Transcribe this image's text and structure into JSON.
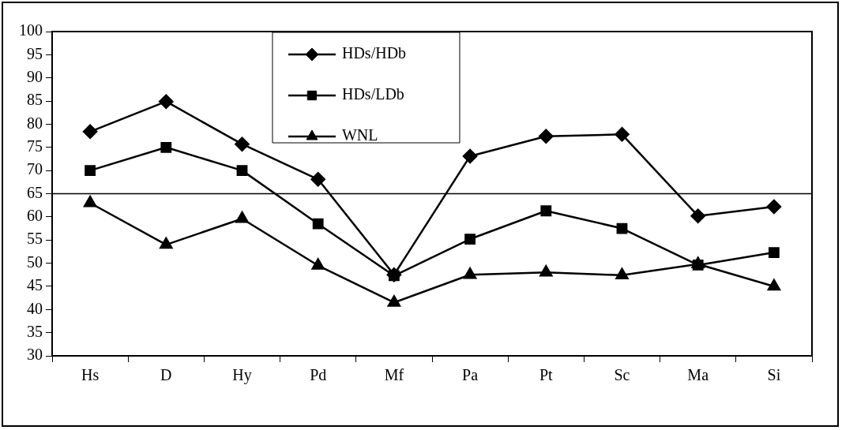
{
  "chart_data": {
    "type": "line",
    "categories": [
      "Hs",
      "D",
      "Hy",
      "Pd",
      "Mf",
      "Pa",
      "Pt",
      "Sc",
      "Ma",
      "Si"
    ],
    "series": [
      {
        "name": "HDs/HDb",
        "color": "#000000",
        "marker": "diamond",
        "values": [
          78.4,
          84.9,
          75.7,
          68.1,
          47.5,
          73.1,
          77.4,
          77.8,
          60.2,
          62.2
        ]
      },
      {
        "name": "HDs/LDb",
        "color": "#000000",
        "marker": "square",
        "values": [
          70,
          75,
          70,
          58.5,
          47.3,
          55.2,
          61.3,
          57.5,
          49.6,
          52.3
        ]
      },
      {
        "name": "WNL",
        "color": "#000000",
        "marker": "triangle",
        "values": [
          63,
          54,
          59.6,
          49.5,
          41.5,
          47.5,
          48,
          47.4,
          49.8,
          45
        ]
      }
    ],
    "ylim": [
      30,
      100
    ],
    "yticks": [
      30,
      35,
      40,
      45,
      50,
      55,
      60,
      65,
      70,
      75,
      80,
      85,
      90,
      95,
      100
    ],
    "ref_lines": [
      {
        "axis": "y",
        "value": 65,
        "color": "#000000"
      }
    ],
    "grid": false,
    "legend": "top",
    "line_style": "solid"
  }
}
